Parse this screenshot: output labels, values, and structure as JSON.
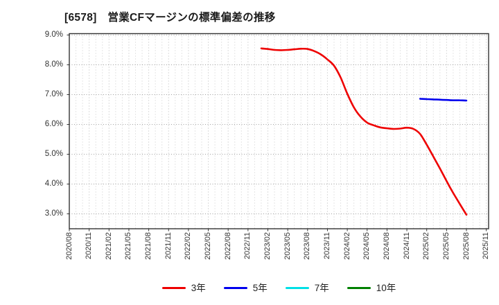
{
  "chart_data": {
    "type": "line",
    "title": "[6578]　営業CFマージンの標準偏差の推移",
    "xlabel": "",
    "ylabel": "",
    "grid": true,
    "legend_position": "bottom",
    "y_axis": {
      "unit": "%",
      "tick_labels": [
        "9.0%",
        "8.0%",
        "7.0%",
        "6.0%",
        "5.0%",
        "4.0%",
        "3.0%"
      ],
      "tick_values": [
        9,
        8,
        7,
        6,
        5,
        4,
        3
      ],
      "ylim": [
        2.55,
        9.0
      ]
    },
    "x_axis": {
      "start": "2020/08",
      "end": "2025/11",
      "months_per_tick": 3,
      "label_rotation": 90,
      "tick_labels": [
        "2020/08",
        "2020/11",
        "2021/02",
        "2021/05",
        "2021/08",
        "2021/11",
        "2022/02",
        "2022/05",
        "2022/08",
        "2022/11",
        "2023/02",
        "2023/05",
        "2023/08",
        "2023/11",
        "2024/02",
        "2024/05",
        "2024/08",
        "2024/11",
        "2025/02",
        "2025/05",
        "2025/08",
        "2025/11"
      ]
    },
    "series": [
      {
        "name": "3年",
        "color": "#ee0000",
        "start_month": "2023/01",
        "values": [
          8.55,
          8.53,
          8.5,
          8.49,
          8.5,
          8.52,
          8.54,
          8.53,
          8.46,
          8.35,
          8.18,
          7.97,
          7.57,
          7.03,
          6.57,
          6.26,
          6.06,
          5.97,
          5.9,
          5.87,
          5.85,
          5.86,
          5.89,
          5.85,
          5.68,
          5.32,
          4.92,
          4.52,
          4.1,
          3.7,
          3.33,
          2.97
        ]
      },
      {
        "name": "5年",
        "color": "#0000ee",
        "start_month": "2025/01",
        "values": [
          6.86,
          6.85,
          6.84,
          6.83,
          6.82,
          6.81,
          6.81,
          6.8
        ]
      },
      {
        "name": "7年",
        "color": "#00e0e6",
        "start_month": null,
        "values": []
      },
      {
        "name": "10年",
        "color": "#008000",
        "start_month": null,
        "values": []
      }
    ]
  }
}
